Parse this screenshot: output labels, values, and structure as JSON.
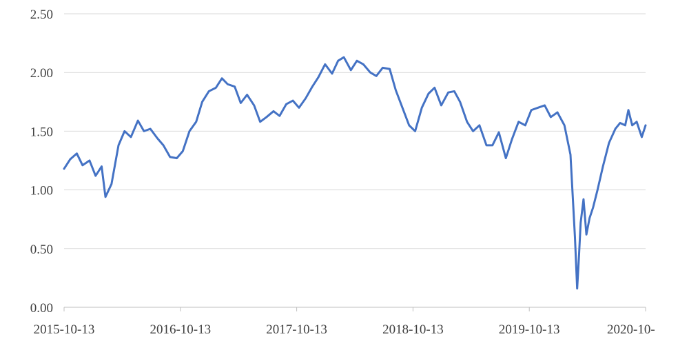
{
  "chart_data": {
    "type": "line",
    "title": "",
    "xlabel": "",
    "ylabel": "",
    "ylim": [
      0,
      2.5
    ],
    "yticks": [
      "0.00",
      "0.50",
      "1.00",
      "1.50",
      "2.00",
      "2.50"
    ],
    "xticks": [
      "2015-10-13",
      "2016-10-13",
      "2017-10-13",
      "2018-10-13",
      "2019-10-13",
      "2020-10-"
    ],
    "xlim": [
      "2015-10-13",
      "2020-10-13"
    ],
    "grid": "horizontal",
    "colors": {
      "line": "#4472C4",
      "grid": "#D9D9D9",
      "axis": "#BFBFBF"
    },
    "series": [
      {
        "x": [
          "2015-10-13",
          "2015-11-01",
          "2015-11-22",
          "2015-12-10",
          "2016-01-01",
          "2016-01-20",
          "2016-02-08",
          "2016-02-20",
          "2016-03-10",
          "2016-04-01",
          "2016-04-20",
          "2016-05-10",
          "2016-06-01",
          "2016-06-20",
          "2016-07-10",
          "2016-08-01",
          "2016-08-20",
          "2016-09-10",
          "2016-10-01",
          "2016-10-20",
          "2016-11-10",
          "2016-12-01",
          "2016-12-20",
          "2017-01-10",
          "2017-02-01",
          "2017-02-20",
          "2017-03-10",
          "2017-04-01",
          "2017-04-20",
          "2017-05-10",
          "2017-06-01",
          "2017-06-20",
          "2017-07-10",
          "2017-08-01",
          "2017-08-20",
          "2017-09-10",
          "2017-10-01",
          "2017-10-20",
          "2017-11-10",
          "2017-12-01",
          "2017-12-20",
          "2018-01-10",
          "2018-02-01",
          "2018-02-20",
          "2018-03-10",
          "2018-04-01",
          "2018-04-20",
          "2018-05-10",
          "2018-06-01",
          "2018-06-20",
          "2018-07-10",
          "2018-08-01",
          "2018-08-20",
          "2018-09-10",
          "2018-10-01",
          "2018-10-20",
          "2018-11-10",
          "2018-12-01",
          "2018-12-20",
          "2019-01-10",
          "2019-02-01",
          "2019-02-20",
          "2019-03-10",
          "2019-04-01",
          "2019-04-20",
          "2019-05-10",
          "2019-06-01",
          "2019-06-20",
          "2019-07-10",
          "2019-08-01",
          "2019-08-20",
          "2019-09-10",
          "2019-10-01",
          "2019-10-20",
          "2019-11-10",
          "2019-12-01",
          "2019-12-20",
          "2020-01-10",
          "2020-02-01",
          "2020-02-20",
          "2020-03-05",
          "2020-03-12",
          "2020-03-18",
          "2020-03-23",
          "2020-04-01",
          "2020-04-10",
          "2020-04-20",
          "2020-05-01",
          "2020-05-15",
          "2020-06-01",
          "2020-06-20",
          "2020-07-10",
          "2020-07-25",
          "2020-08-10",
          "2020-08-20",
          "2020-09-01",
          "2020-09-15",
          "2020-10-01",
          "2020-10-13"
        ],
        "y": [
          1.18,
          1.26,
          1.31,
          1.21,
          1.25,
          1.12,
          1.2,
          0.94,
          1.05,
          1.38,
          1.5,
          1.45,
          1.59,
          1.5,
          1.52,
          1.44,
          1.38,
          1.28,
          1.27,
          1.33,
          1.5,
          1.58,
          1.75,
          1.84,
          1.87,
          1.95,
          1.9,
          1.88,
          1.74,
          1.81,
          1.72,
          1.58,
          1.62,
          1.67,
          1.63,
          1.73,
          1.76,
          1.7,
          1.78,
          1.88,
          1.96,
          2.07,
          1.99,
          2.1,
          2.13,
          2.02,
          2.1,
          2.07,
          2.0,
          1.97,
          2.04,
          2.03,
          1.85,
          1.7,
          1.55,
          1.5,
          1.7,
          1.82,
          1.87,
          1.72,
          1.83,
          1.84,
          1.75,
          1.58,
          1.5,
          1.55,
          1.38,
          1.38,
          1.49,
          1.27,
          1.43,
          1.58,
          1.55,
          1.68,
          1.7,
          1.72,
          1.62,
          1.66,
          1.55,
          1.3,
          0.6,
          0.16,
          0.45,
          0.72,
          0.92,
          0.62,
          0.76,
          0.85,
          1.0,
          1.2,
          1.4,
          1.52,
          1.57,
          1.55,
          1.68,
          1.55,
          1.58,
          1.45,
          1.55
        ]
      }
    ]
  }
}
